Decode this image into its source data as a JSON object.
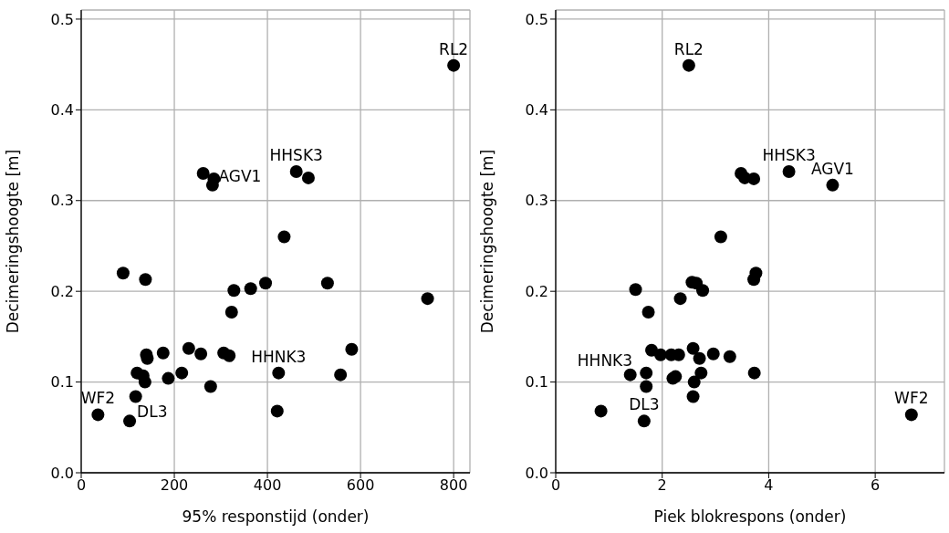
{
  "chart_data": [
    {
      "type": "scatter",
      "xlabel": "95% responstijd (onder)",
      "ylabel": "Decimeringshoogte [m]",
      "xlim": [
        0,
        835
      ],
      "xticks": [
        0,
        200,
        400,
        600,
        800
      ],
      "ylim": [
        0,
        0.51
      ],
      "yticks": [
        {
          "value": 0,
          "label": "0.0"
        },
        0.1,
        0.2,
        0.3,
        0.4,
        0.5
      ],
      "grid": true,
      "marker": "circle",
      "series": [
        {
          "color": "#000000",
          "x": [
            800,
            262,
            285,
            282,
            462,
            488,
            436,
            90,
            138,
            396,
            529,
            364,
            328,
            323,
            744,
            120,
            133,
            137,
            140,
            142,
            176,
            187,
            216,
            231,
            257,
            306,
            318,
            278,
            117,
            104,
            36,
            421,
            424,
            557,
            581
          ],
          "values": [
            0.449,
            0.33,
            0.324,
            0.317,
            0.332,
            0.325,
            0.26,
            0.22,
            0.213,
            0.209,
            0.209,
            0.203,
            0.201,
            0.177,
            0.192,
            0.11,
            0.107,
            0.1,
            0.13,
            0.126,
            0.132,
            0.104,
            0.11,
            0.137,
            0.131,
            0.132,
            0.129,
            0.095,
            0.084,
            0.057,
            0.064,
            0.068,
            0.11,
            0.108,
            0.136
          ]
        }
      ],
      "annotations": [
        {
          "text": "RL2",
          "x": 800,
          "y": 0.449
        },
        {
          "text": "AGV1",
          "x": 282,
          "y": 0.317
        },
        {
          "text": "HHSK3",
          "x": 462,
          "y": 0.332
        },
        {
          "text": "HHNK3",
          "x": 424,
          "y": 0.11
        },
        {
          "text": "WF2",
          "x": 36,
          "y": 0.064
        },
        {
          "text": "DL3",
          "x": 104,
          "y": 0.057
        }
      ]
    },
    {
      "type": "scatter",
      "xlabel": "Piek blokrespons (onder)",
      "ylabel": "Decimeringshoogte [m]",
      "xlim": [
        0,
        7.3
      ],
      "xticks": [
        0,
        2,
        4,
        6
      ],
      "ylim": [
        0,
        0.51
      ],
      "yticks": [
        {
          "value": 0,
          "label": "0.0"
        },
        0.1,
        0.2,
        0.3,
        0.4,
        0.5
      ],
      "grid": true,
      "marker": "circle",
      "series": [
        {
          "color": "#000000",
          "x": [
            2.5,
            3.48,
            3.55,
            3.72,
            4.38,
            5.2,
            3.1,
            3.76,
            3.72,
            2.56,
            2.64,
            2.76,
            1.5,
            2.34,
            1.74,
            1.8,
            1.97,
            2.17,
            2.31,
            2.58,
            2.96,
            3.27,
            2.7,
            1.4,
            1.7,
            2.2,
            2.25,
            2.73,
            3.73,
            2.6,
            1.7,
            2.58,
            0.85,
            1.66,
            6.68
          ],
          "values": [
            0.449,
            0.33,
            0.325,
            0.324,
            0.332,
            0.317,
            0.26,
            0.22,
            0.213,
            0.21,
            0.209,
            0.201,
            0.202,
            0.192,
            0.177,
            0.135,
            0.13,
            0.13,
            0.13,
            0.137,
            0.131,
            0.128,
            0.126,
            0.108,
            0.11,
            0.104,
            0.106,
            0.11,
            0.11,
            0.1,
            0.095,
            0.084,
            0.068,
            0.057,
            0.064
          ]
        }
      ],
      "annotations": [
        {
          "text": "RL2",
          "x": 2.5,
          "y": 0.449
        },
        {
          "text": "HHSK3",
          "x": 4.38,
          "y": 0.332
        },
        {
          "text": "AGV1",
          "x": 5.2,
          "y": 0.317
        },
        {
          "text": "HHNK3",
          "x": 1.7,
          "y": 0.11
        },
        {
          "text": "DL3",
          "x": 1.66,
          "y": 0.057
        },
        {
          "text": "WF2",
          "x": 6.68,
          "y": 0.064
        }
      ]
    }
  ]
}
